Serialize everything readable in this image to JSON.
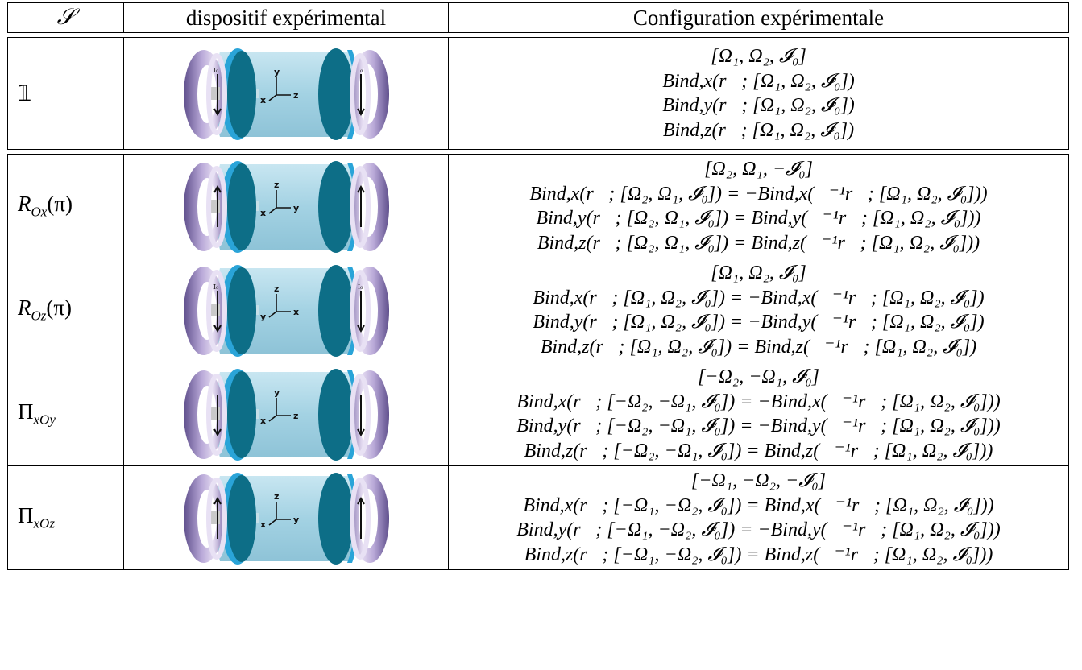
{
  "table": {
    "headers": [
      "𝒮",
      "dispositif expérimental",
      "Configuration expérimentale"
    ],
    "rows": [
      {
        "symbol": "𝟙",
        "arrows": [
          "down",
          "down"
        ],
        "current_label": "I₀",
        "axes": [
          "x",
          "y",
          "z"
        ],
        "lines": [
          "[Ω₁, Ω₂, 𝓘₀]",
          "Bind,x(r⃗; [Ω₁, Ω₂, 𝓘₀])",
          "Bind,y(r⃗; [Ω₁, Ω₂, 𝓘₀])",
          "Bind,z(r⃗; [Ω₁, Ω₂, 𝓘₀])"
        ]
      },
      {
        "symbol": "R",
        "symbol_sub": "Ox",
        "symbol_arg": "(π)",
        "arrows": [
          "up",
          "up"
        ],
        "axes": [
          "x",
          "z",
          "y"
        ],
        "lines": [
          "[Ω₂, Ω₁, −𝓘₀]",
          "Bind,x(r⃗; [Ω₂, Ω₁, 𝓘₀]) = −Bind,x(𝒮⁻¹r⃗; [Ω₁, Ω₂, 𝓘₀]))",
          "Bind,y(r⃗; [Ω₂, Ω₁, 𝓘₀]) = Bind,y(𝒮⁻¹r⃗; [Ω₁, Ω₂, 𝓘₀]))",
          "Bind,z(r⃗; [Ω₂, Ω₁, 𝓘₀]) = Bind,z(𝒮⁻¹r⃗; [Ω₁, Ω₂, 𝓘₀]))"
        ]
      },
      {
        "symbol": "R",
        "symbol_sub": "Oz",
        "symbol_arg": "(π)",
        "arrows": [
          "down",
          "down"
        ],
        "current_label": "I₀",
        "axes": [
          "y",
          "z",
          "x"
        ],
        "lines": [
          "[Ω₁, Ω₂, 𝓘₀]",
          "Bind,x(r⃗; [Ω₁, Ω₂, 𝓘₀]) = −Bind,x(𝒮⁻¹r⃗; [Ω₁, Ω₂, 𝓘₀])",
          "Bind,y(r⃗; [Ω₁, Ω₂, 𝓘₀]) = −Bind,y(𝒮⁻¹r⃗; [Ω₁, Ω₂, 𝓘₀])",
          "Bind,z(r⃗; [Ω₁, Ω₂, 𝓘₀]) = Bind,z(𝒮⁻¹r⃗; [Ω₁, Ω₂, 𝓘₀])"
        ]
      },
      {
        "symbol": "Π",
        "symbol_sub": "xOy",
        "symbol_arg": "",
        "arrows": [
          "down",
          "down"
        ],
        "axes": [
          "x",
          "y",
          "z"
        ],
        "lines": [
          "[−Ω₂, −Ω₁, 𝓘₀]",
          "Bind,x(r⃗; [−Ω₂, −Ω₁, 𝓘₀]) = −Bind,x(𝒮⁻¹r⃗; [Ω₁, Ω₂, 𝓘₀]))",
          "Bind,y(r⃗; [−Ω₂, −Ω₁, 𝓘₀]) = −Bind,y(𝒮⁻¹r⃗; [Ω₁, Ω₂, 𝓘₀]))",
          "Bind,z(r⃗; [−Ω₂, −Ω₁, 𝓘₀]) = Bind,z(𝒮⁻¹r⃗; [Ω₁, Ω₂, 𝓘₀]))"
        ]
      },
      {
        "symbol": "Π",
        "symbol_sub": "xOz",
        "symbol_arg": "",
        "arrows": [
          "up",
          "up"
        ],
        "axes": [
          "x",
          "z",
          "y"
        ],
        "lines": [
          "[−Ω₁, −Ω₂, −𝓘₀]",
          "Bind,x(r⃗; [−Ω₁, −Ω₂, 𝓘₀]) = Bind,x(𝒮⁻¹r⃗; [Ω₁, Ω₂, 𝓘₀]))",
          "Bind,y(r⃗; [−Ω₁, −Ω₂, 𝓘₀]) = −Bind,y(𝒮⁻¹r⃗; [Ω₁, Ω₂, 𝓘₀]))",
          "Bind,z(r⃗; [−Ω₁, −Ω₂, 𝓘₀]) = Bind,z(𝒮⁻¹r⃗; [Ω₁, Ω₂, 𝓘₀]))"
        ]
      }
    ]
  },
  "colors": {
    "ring_light": "#cdbfe2",
    "ring_dark": "#6f5e99",
    "disk_front": "#2aa4d8",
    "disk_back": "#0d6e87",
    "cylinder": "#a9d6e6"
  }
}
